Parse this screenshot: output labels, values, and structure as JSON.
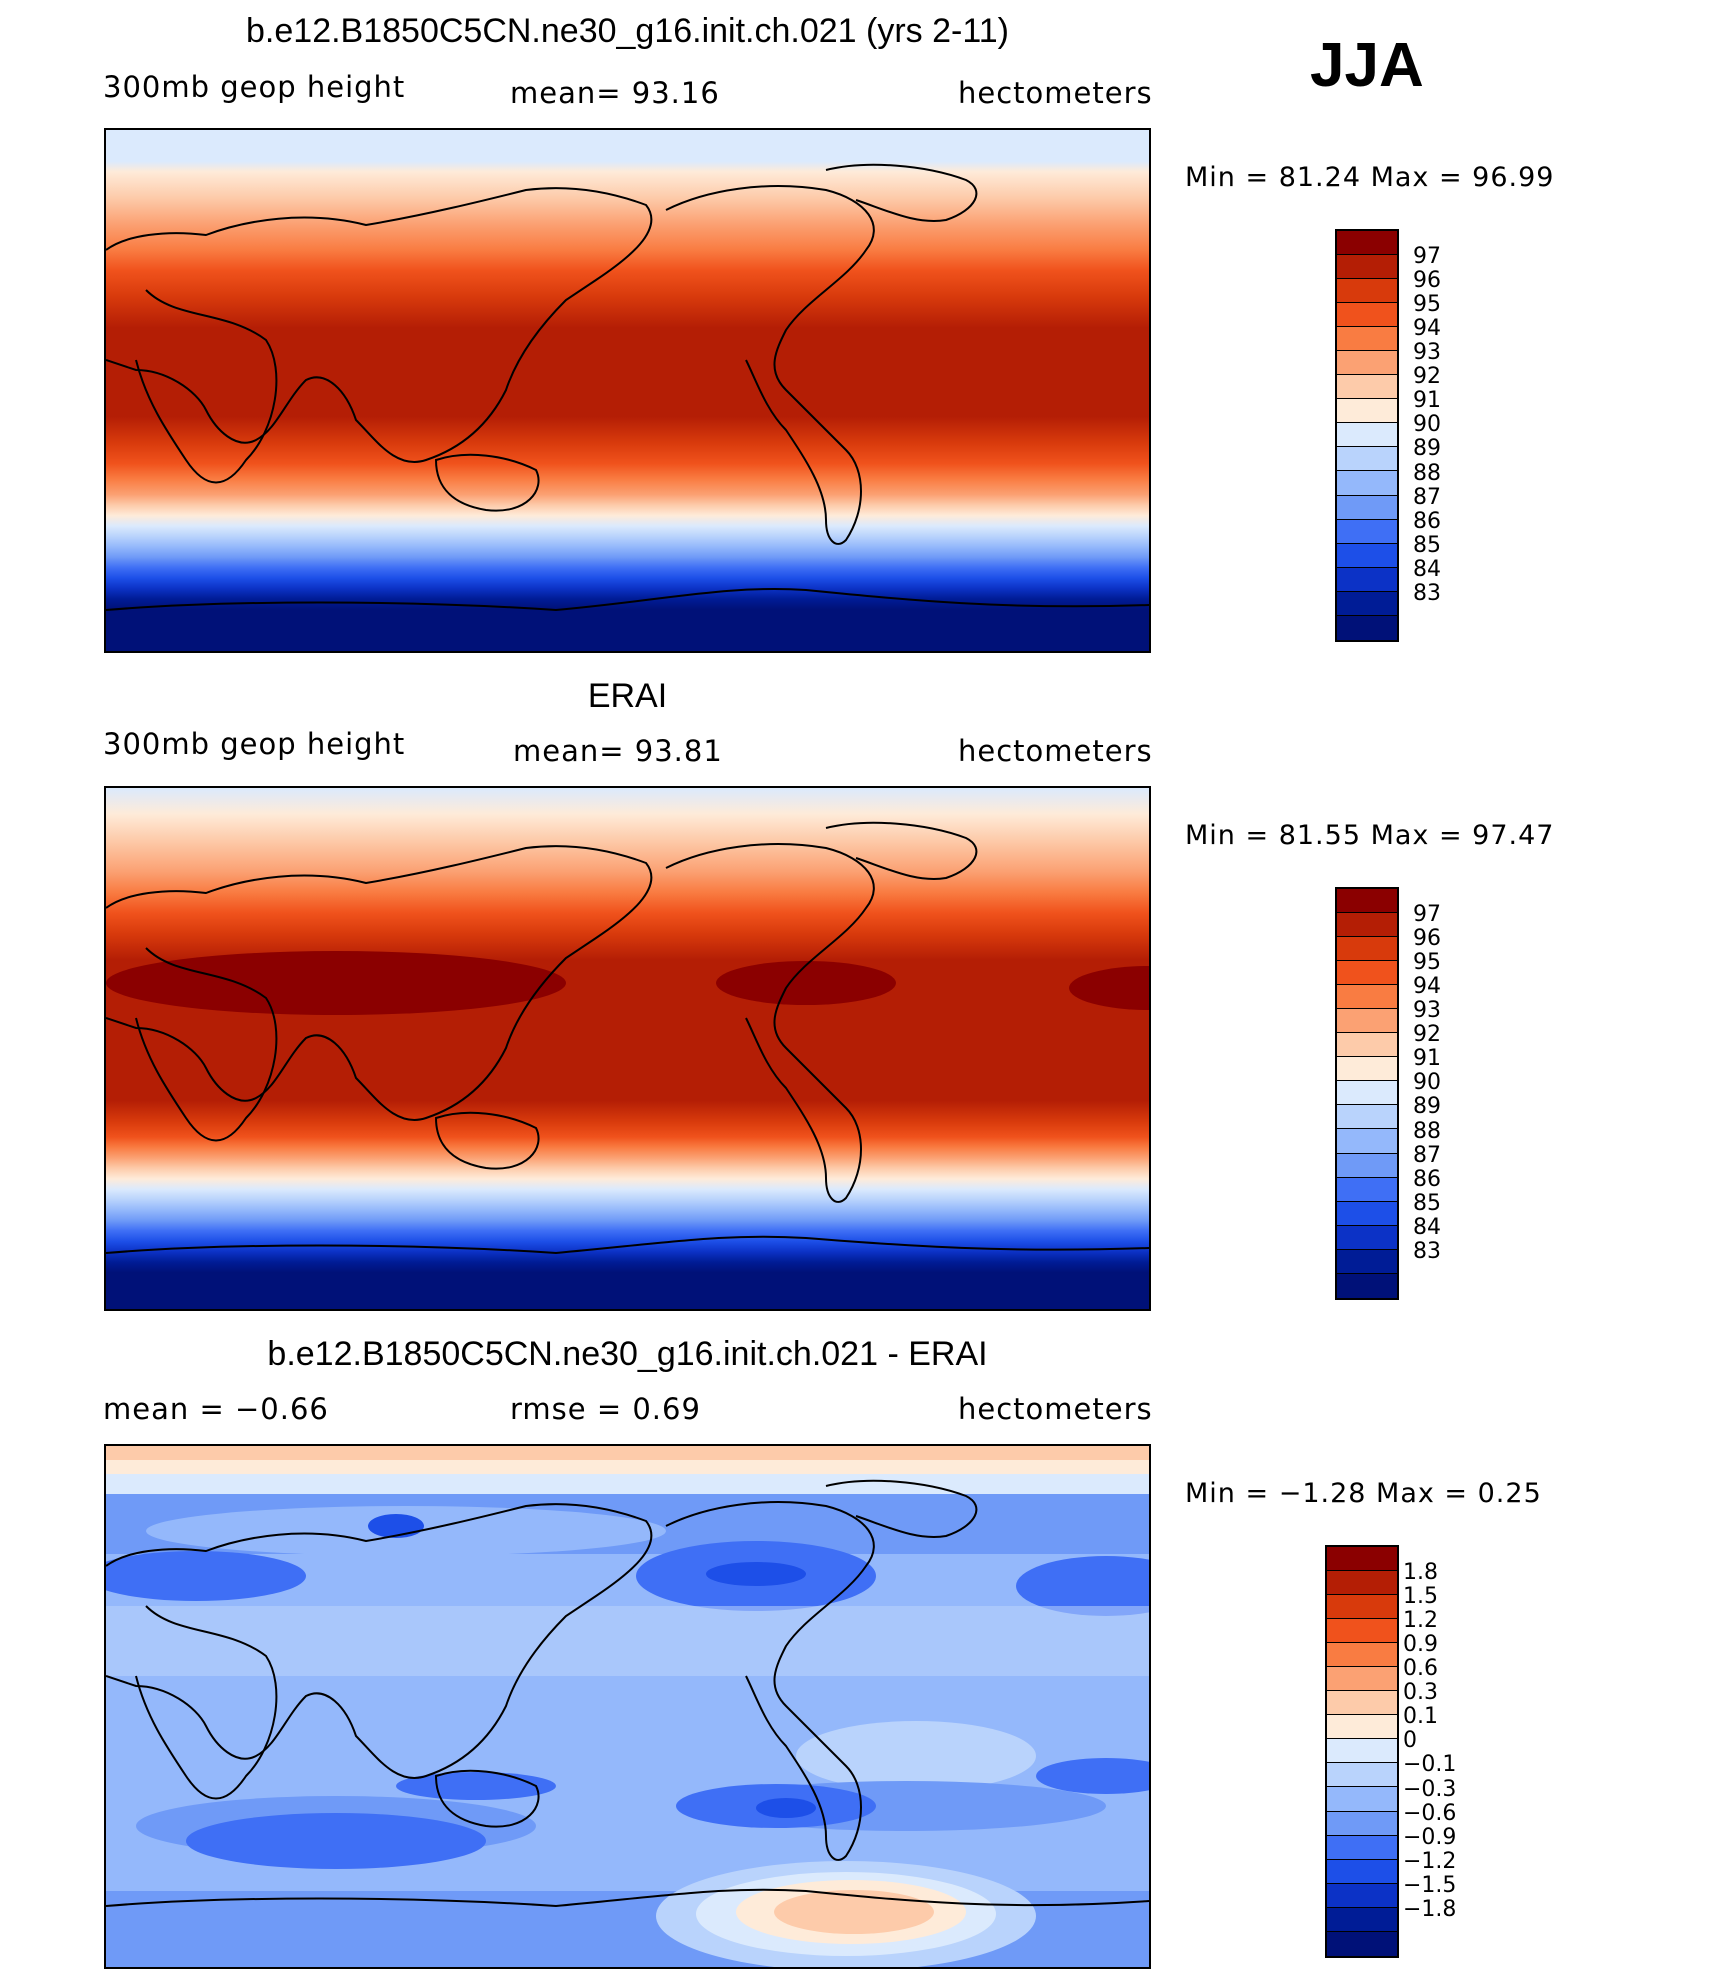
{
  "season": "JJA",
  "panels": [
    {
      "id": "model",
      "title": "b.e12.B1850C5CN.ne30_g16.init.ch.021 (yrs 2-11)",
      "left_label": "300mb  geop  height",
      "center_label": "mean=   93.16",
      "right_label": "hectometers",
      "minmax": "Min  =    81.24  Max  =    96.99",
      "colorbar": {
        "colors": [
          "#8b0000",
          "#b41e05",
          "#d83a0c",
          "#f0521c",
          "#f97c42",
          "#fba173",
          "#fdcbaa",
          "#feebd9",
          "#dbeafd",
          "#b9d3fc",
          "#94b8fb",
          "#6f9af7",
          "#3f6ff5",
          "#1d4fe8",
          "#0c32c6",
          "#001c96",
          "#001178"
        ],
        "labels": [
          "97",
          "96",
          "95",
          "94",
          "93",
          "92",
          "91",
          "90",
          "89",
          "88",
          "87",
          "86",
          "85",
          "84",
          "83"
        ]
      }
    },
    {
      "id": "obs",
      "title": "ERAI",
      "left_label": "300mb  geop  height",
      "center_label": "mean=   93.81",
      "right_label": "hectometers",
      "minmax": "Min  =    81.55  Max  =    97.47",
      "colorbar": {
        "colors": [
          "#8b0000",
          "#b41e05",
          "#d83a0c",
          "#f0521c",
          "#f97c42",
          "#fba173",
          "#fdcbaa",
          "#feebd9",
          "#dbeafd",
          "#b9d3fc",
          "#94b8fb",
          "#6f9af7",
          "#3f6ff5",
          "#1d4fe8",
          "#0c32c6",
          "#001c96",
          "#001178"
        ],
        "labels": [
          "97",
          "96",
          "95",
          "94",
          "93",
          "92",
          "91",
          "90",
          "89",
          "88",
          "87",
          "86",
          "85",
          "84",
          "83"
        ]
      }
    },
    {
      "id": "diff",
      "title": "b.e12.B1850C5CN.ne30_g16.init.ch.021 - ERAI",
      "left_label": "mean  =    −0.66",
      "center_label": "rmse  =     0.69",
      "right_label": "hectometers",
      "minmax": "Min  =   −1.28  Max  =     0.25",
      "colorbar": {
        "colors": [
          "#8b0000",
          "#b41e05",
          "#d83a0c",
          "#f0521c",
          "#f97c42",
          "#fba173",
          "#fdcbaa",
          "#feebd9",
          "#dbeafd",
          "#b9d3fc",
          "#94b8fb",
          "#6f9af7",
          "#3f6ff5",
          "#1d4fe8",
          "#0c32c6",
          "#001c96",
          "#001178"
        ],
        "labels": [
          "1.8",
          "1.5",
          "1.2",
          "0.9",
          "0.6",
          "0.3",
          "0.1",
          "0",
          "−0.1",
          "−0.3",
          "−0.6",
          "−0.9",
          "−1.2",
          "−1.5",
          "−1.8"
        ]
      }
    }
  ]
}
